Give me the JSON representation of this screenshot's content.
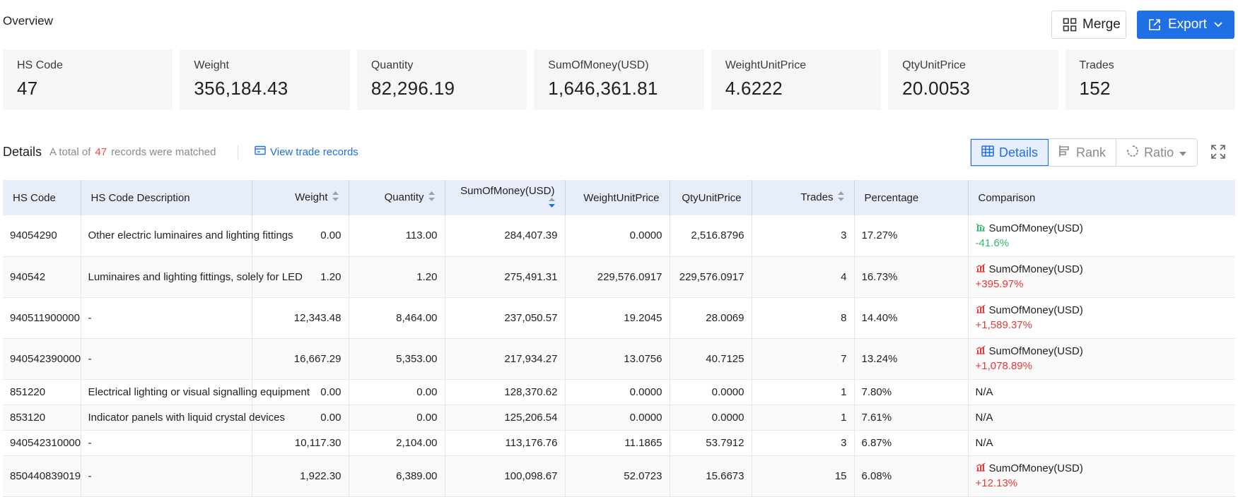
{
  "overview": {
    "title": "Overview"
  },
  "toolbar": {
    "merge_label": "Merge",
    "export_label": "Export"
  },
  "stats": [
    {
      "label": "HS Code",
      "value": "47"
    },
    {
      "label": "Weight",
      "value": "356,184.43"
    },
    {
      "label": "Quantity",
      "value": "82,296.19"
    },
    {
      "label": "SumOfMoney(USD)",
      "value": "1,646,361.81"
    },
    {
      "label": "WeightUnitPrice",
      "value": "4.6222"
    },
    {
      "label": "QtyUnitPrice",
      "value": "20.0053"
    },
    {
      "label": "Trades",
      "value": "152"
    }
  ],
  "details": {
    "title": "Details",
    "matched_prefix": "A total of",
    "matched_count": "47",
    "matched_suffix": "records were matched",
    "view_link": "View trade records",
    "views": {
      "details": "Details",
      "rank": "Rank",
      "ratio": "Ratio"
    }
  },
  "table": {
    "columns": [
      "HS Code",
      "HS Code Description",
      "Weight",
      "Quantity",
      "SumOfMoney(USD)",
      "WeightUnitPrice",
      "QtyUnitPrice",
      "Trades",
      "Percentage",
      "Comparison"
    ],
    "rows": [
      {
        "hs": "94054290",
        "desc": "Other electric luminaires and lighting fittings",
        "weight": "0.00",
        "qty": "113.00",
        "sum": "284,407.39",
        "wup": "0.0000",
        "qup": "2,516.8796",
        "trades": "3",
        "pct": "17.27%",
        "cmp_label": "SumOfMoney(USD)",
        "cmp_value": "-41.6%",
        "cmp_dir": "down"
      },
      {
        "hs": "940542",
        "desc": "Luminaires and lighting fittings, solely for LED",
        "weight": "1.20",
        "qty": "1.20",
        "sum": "275,491.31",
        "wup": "229,576.0917",
        "qup": "229,576.0917",
        "trades": "4",
        "pct": "16.73%",
        "cmp_label": "SumOfMoney(USD)",
        "cmp_value": "+395.97%",
        "cmp_dir": "up"
      },
      {
        "hs": "940511900000",
        "desc": "-",
        "weight": "12,343.48",
        "qty": "8,464.00",
        "sum": "237,050.57",
        "wup": "19.2045",
        "qup": "28.0069",
        "trades": "8",
        "pct": "14.40%",
        "cmp_label": "SumOfMoney(USD)",
        "cmp_value": "+1,589.37%",
        "cmp_dir": "up"
      },
      {
        "hs": "940542390000",
        "desc": "-",
        "weight": "16,667.29",
        "qty": "5,353.00",
        "sum": "217,934.27",
        "wup": "13.0756",
        "qup": "40.7125",
        "trades": "7",
        "pct": "13.24%",
        "cmp_label": "SumOfMoney(USD)",
        "cmp_value": "+1,078.89%",
        "cmp_dir": "up"
      },
      {
        "hs": "851220",
        "desc": "Electrical lighting or visual signalling equipment",
        "weight": "0.00",
        "qty": "0.00",
        "sum": "128,370.62",
        "wup": "0.0000",
        "qup": "0.0000",
        "trades": "1",
        "pct": "7.80%",
        "cmp_na": "N/A"
      },
      {
        "hs": "853120",
        "desc": "Indicator panels with liquid crystal devices",
        "weight": "0.00",
        "qty": "0.00",
        "sum": "125,206.54",
        "wup": "0.0000",
        "qup": "0.0000",
        "trades": "1",
        "pct": "7.61%",
        "cmp_na": "N/A"
      },
      {
        "hs": "940542310000",
        "desc": "-",
        "weight": "10,117.30",
        "qty": "2,104.00",
        "sum": "113,176.76",
        "wup": "11.1865",
        "qup": "53.7912",
        "trades": "3",
        "pct": "6.87%",
        "cmp_na": "N/A"
      },
      {
        "hs": "850440839019",
        "desc": "-",
        "weight": "1,922.30",
        "qty": "6,389.00",
        "sum": "100,098.67",
        "wup": "52.0723",
        "qup": "15.6673",
        "trades": "15",
        "pct": "6.08%",
        "cmp_label": "SumOfMoney(USD)",
        "cmp_value": "+12.13%",
        "cmp_dir": "up"
      }
    ]
  },
  "colors": {
    "accent": "#1f6fe5",
    "up": "#e53935",
    "down": "#2fb96b",
    "header_bg": "#e8eef9"
  }
}
